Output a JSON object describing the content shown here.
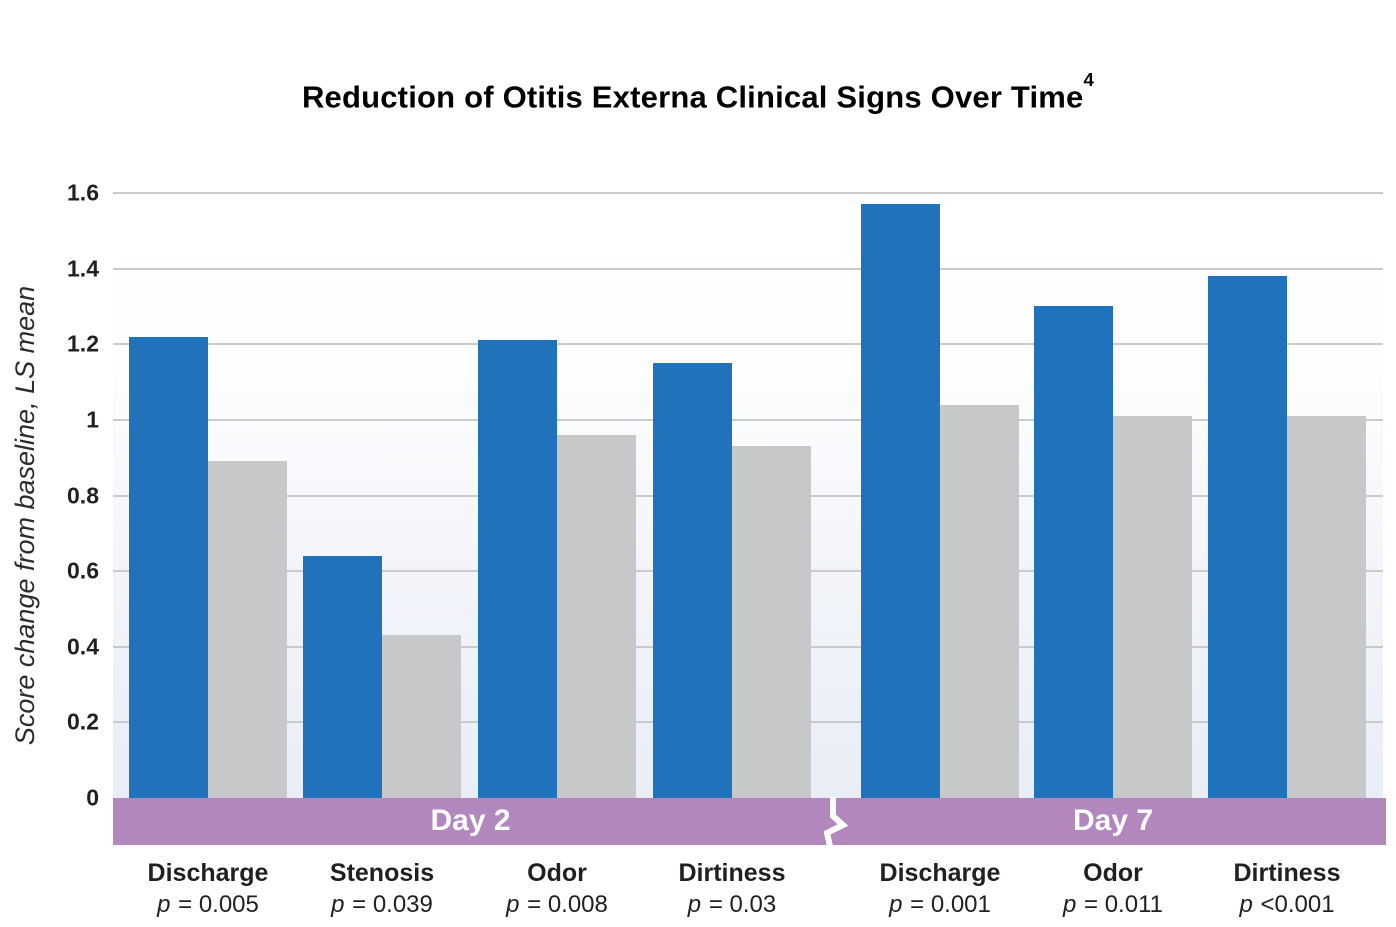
{
  "chart_data": {
    "type": "bar",
    "title": "Reduction of Otitis Externa Clinical Signs Over Time",
    "title_superscript": "4",
    "ylabel": "Score change from baseline, LS mean",
    "ylim": [
      0,
      1.6
    ],
    "ytick_labels": [
      "0",
      "0.2",
      "0.4",
      "0.6",
      "0.8",
      "1",
      "1.2",
      "1.4",
      "1.6"
    ],
    "ytick_values": [
      0,
      0.2,
      0.4,
      0.6,
      0.8,
      1.0,
      1.2,
      1.4,
      1.6
    ],
    "grid": true,
    "legend": "none",
    "p_symbol": "p",
    "x_bands": [
      {
        "label": "Day 2",
        "group_count": 4
      },
      {
        "label": "Day 7",
        "group_count": 3
      }
    ],
    "groups": [
      {
        "band": "Day 2",
        "sign": "Discharge",
        "p_rest": "= 0.005",
        "blue": 1.22,
        "gray": 0.89
      },
      {
        "band": "Day 2",
        "sign": "Stenosis",
        "p_rest": "= 0.039",
        "blue": 0.64,
        "gray": 0.43
      },
      {
        "band": "Day 2",
        "sign": "Odor",
        "p_rest": "= 0.008",
        "blue": 1.21,
        "gray": 0.96
      },
      {
        "band": "Day 2",
        "sign": "Dirtiness",
        "p_rest": "= 0.03",
        "blue": 1.15,
        "gray": 0.93
      },
      {
        "band": "Day 7",
        "sign": "Discharge",
        "p_rest": "= 0.001",
        "blue": 1.57,
        "gray": 1.04
      },
      {
        "band": "Day 7",
        "sign": "Odor",
        "p_rest": "= 0.011",
        "blue": 1.3,
        "gray": 1.01
      },
      {
        "band": "Day 7",
        "sign": "Dirtiness",
        "p_rest": "<0.001",
        "blue": 1.38,
        "gray": 1.01
      }
    ],
    "colors": {
      "blue_bar": "#2072BB",
      "gray_bar": "#C7C8CA",
      "day_band": "#B287BE",
      "gridline": "#C9CACC",
      "text": "#231F20",
      "band_text": "#FFFFFF",
      "plot_bg_bottom": "#E9EDF6"
    }
  }
}
